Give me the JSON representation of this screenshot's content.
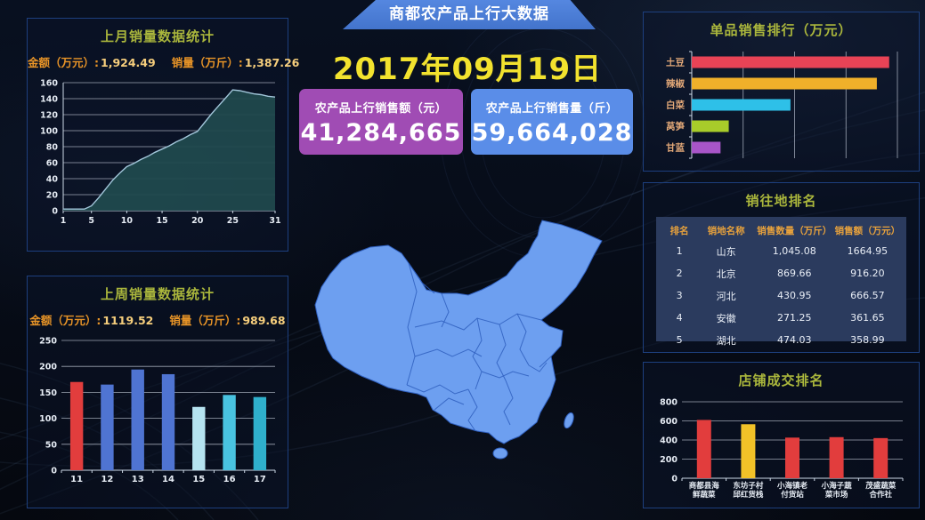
{
  "header": {
    "banner_title": "商都农产品上行大数据",
    "date": "2017年09月19日"
  },
  "stat_cards": [
    {
      "label": "农产品上行销售额（元）",
      "value": "41,284,665",
      "color": "#a04cb4"
    },
    {
      "label": "农产品上行销售量（斤）",
      "value": "59,664,028",
      "color": "#5a8de8"
    }
  ],
  "panels": {
    "last_month": {
      "title": "上月销量数据统计",
      "amount_label": "金额（万元）:",
      "amount_value": "1,924.49",
      "qty_label": "销量（万斤）:",
      "qty_value": "1,387.26"
    },
    "last_week": {
      "title": "上周销量数据统计",
      "amount_label": "金额（万元）:",
      "amount_value": "1119.52",
      "qty_label": "销量（万斤）:",
      "qty_value": "989.68"
    },
    "item_ranking": {
      "title": "单品销售排行（万元）"
    },
    "destination": {
      "title": "销往地排名"
    },
    "store": {
      "title": "店铺成交排名"
    }
  },
  "destination_table": {
    "headers": [
      "排名",
      "销地名称",
      "销售数量（万斤）",
      "销售额（万元）"
    ],
    "rows": [
      [
        "1",
        "山东",
        "1,045.08",
        "1664.95"
      ],
      [
        "2",
        "北京",
        "869.66",
        "916.20"
      ],
      [
        "3",
        "河北",
        "430.95",
        "666.57"
      ],
      [
        "4",
        "安徽",
        "271.25",
        "361.65"
      ],
      [
        "5",
        "湖北",
        "474.03",
        "358.99"
      ]
    ]
  },
  "colors": {
    "background": "#070c18",
    "panel_border": "#1d3f7e",
    "panel_title": "#aab63c",
    "subtitle_label": "#e89427",
    "subtitle_value": "#f6ce7c",
    "date": "#f2e22e",
    "banner": "#4a7dd8",
    "map_fill": "#6d9ff0",
    "map_border": "#2f5fbe",
    "table_header": "#e8a23c",
    "table_bg": "#2b3b5e"
  },
  "chart_data": [
    {
      "id": "last-month-area",
      "type": "area",
      "title": "上月销量数据统计",
      "x": [
        1,
        2,
        3,
        4,
        5,
        6,
        7,
        8,
        9,
        10,
        11,
        12,
        13,
        14,
        15,
        16,
        17,
        18,
        19,
        20,
        21,
        22,
        23,
        24,
        25,
        26,
        27,
        28,
        29,
        30,
        31
      ],
      "values": [
        2,
        2,
        2,
        2,
        6,
        16,
        27,
        38,
        47,
        55,
        59,
        64,
        68,
        73,
        77,
        81,
        86,
        90,
        95,
        99,
        110,
        121,
        131,
        141,
        151,
        150,
        148,
        146,
        145,
        143,
        142
      ],
      "x_ticks": [
        1,
        5,
        10,
        15,
        20,
        25,
        31
      ],
      "ylim": [
        0,
        160
      ],
      "y_ticks": [
        0,
        20,
        40,
        60,
        80,
        100,
        120,
        140,
        160
      ],
      "xlabel": "",
      "ylabel": "",
      "grid": true,
      "legend": "none",
      "fill": "#20494d",
      "stroke": "#a2c6da"
    },
    {
      "id": "last-week-bar",
      "type": "bar",
      "title": "上周销量数据统计",
      "categories": [
        "11",
        "12",
        "13",
        "14",
        "15",
        "16",
        "17"
      ],
      "values": [
        170,
        165,
        194,
        185,
        122,
        145,
        141
      ],
      "colors": [
        "#e23d3d",
        "#4f74d2",
        "#4f74d2",
        "#4f74d2",
        "#b5e3f0",
        "#49c3e0",
        "#2fb0cc"
      ],
      "ylim": [
        0,
        250
      ],
      "y_ticks": [
        0,
        50,
        100,
        150,
        200,
        250
      ],
      "xlabel": "",
      "ylabel": "",
      "grid": true,
      "legend": "none"
    },
    {
      "id": "item-hbar",
      "type": "hbar",
      "title": "单品销售排行（万元）",
      "categories": [
        "土豆",
        "辣椒",
        "白菜",
        "莴笋",
        "甘蓝"
      ],
      "values": [
        96,
        90,
        48,
        18,
        14
      ],
      "xlim": [
        0,
        100
      ],
      "colors": [
        "#e84356",
        "#f0b02a",
        "#2ec0e8",
        "#a8cc2a",
        "#a855c8"
      ],
      "grid": true,
      "legend": "none",
      "note": "bar lengths relative to axis max; numeric tick labels not shown in source"
    },
    {
      "id": "store-bar",
      "type": "bar",
      "title": "店铺成交排名",
      "categories": [
        "商都县海鲜蔬菜",
        "东坊子村邱红货栈",
        "小海镇老付货站",
        "小海子蔬菜市场",
        "茂盛蔬菜合作社"
      ],
      "values": [
        610,
        565,
        425,
        430,
        420
      ],
      "colors": [
        "#e23d3d",
        "#f2c228",
        "#e23d3d",
        "#e23d3d",
        "#e23d3d"
      ],
      "ylim": [
        0,
        800
      ],
      "y_ticks": [
        0,
        200,
        400,
        600,
        800
      ],
      "xlabel": "",
      "ylabel": "",
      "grid": true,
      "legend": "none"
    }
  ]
}
